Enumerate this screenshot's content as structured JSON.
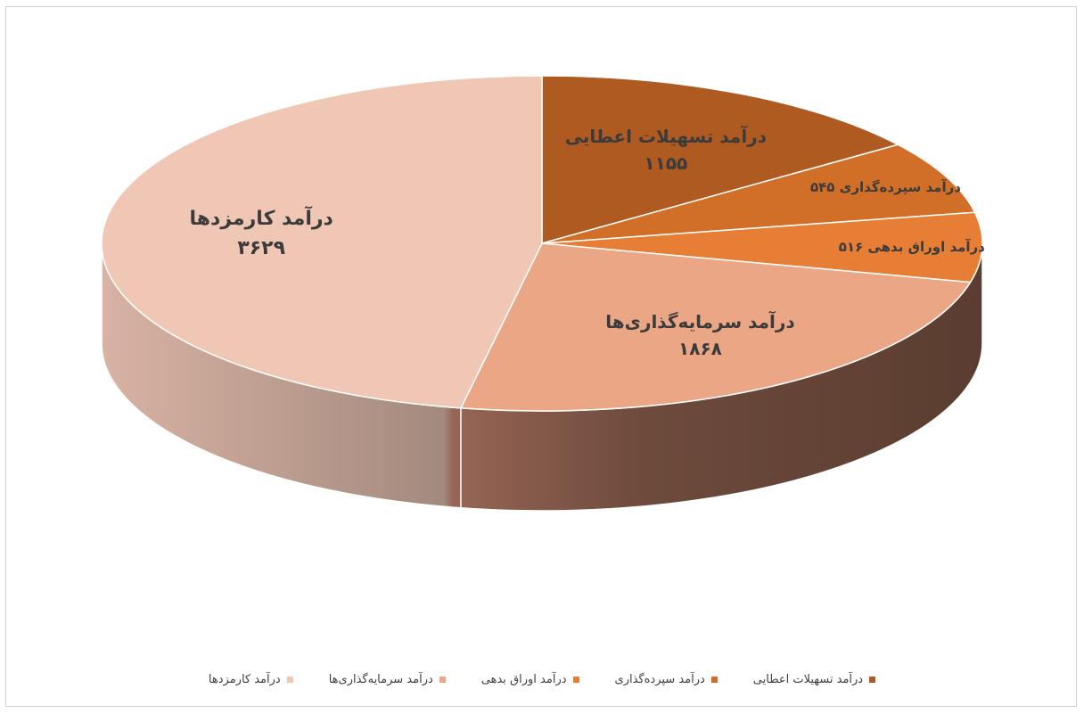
{
  "chart_data": {
    "type": "pie",
    "categories": [
      "درآمد تسهیلات اعطایی",
      "درآمد سپرده‌گذاری",
      "درآمد اوراق بدهی",
      "درآمد سرمایه‌گذاری‌ها",
      "درآمد کارمزدها"
    ],
    "values": [
      1155,
      545,
      516,
      1868,
      3629
    ],
    "value_labels": [
      "۱۱۵۵",
      "۵۴۵",
      "۵۱۶",
      "۱۸۶۸",
      "۳۶۲۹"
    ],
    "colors": [
      "#AE5A21",
      "#D16F28",
      "#E77E35",
      "#EBA686",
      "#F0C7B5"
    ],
    "legend_position": "bottom",
    "title": ""
  },
  "legend": [
    {
      "label": "درآمد تسهیلات اعطایی",
      "color": "#AE5A21"
    },
    {
      "label": "درآمد سپرده‌گذاری",
      "color": "#D16F28"
    },
    {
      "label": "درآمد اوراق بدهی",
      "color": "#E77E35"
    },
    {
      "label": "درآمد سرمایه‌گذاری‌ها",
      "color": "#EBA686"
    },
    {
      "label": "درآمد کارمزدها",
      "color": "#F0C7B5"
    }
  ]
}
